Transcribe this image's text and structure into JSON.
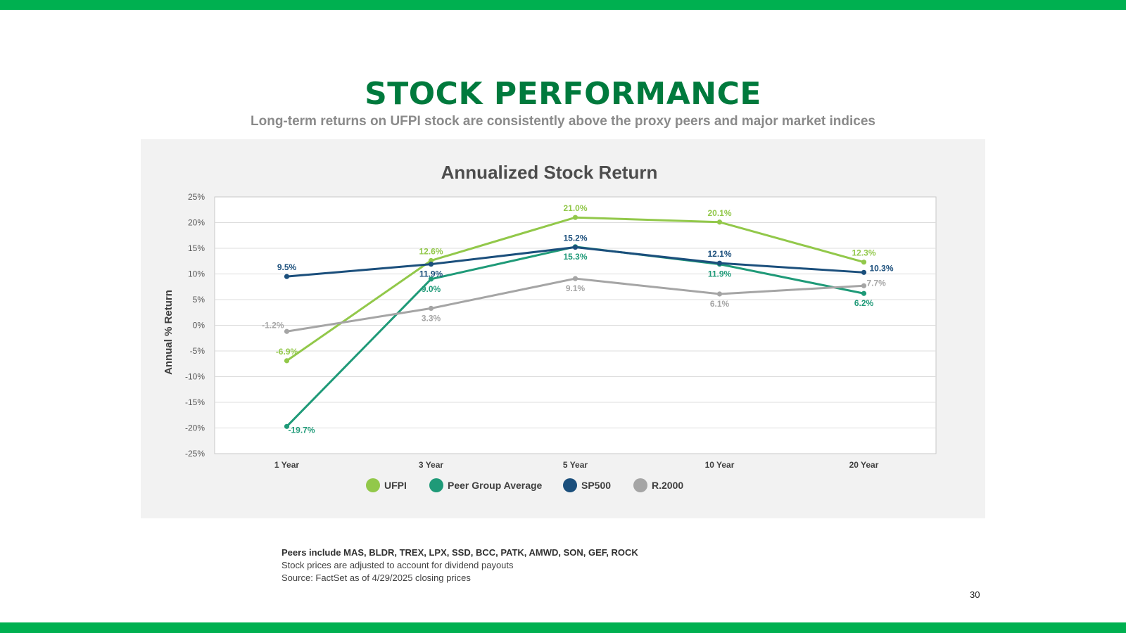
{
  "page": {
    "title": "STOCK PERFORMANCE",
    "subtitle": "Long-term returns on UFPI stock are consistently above the proxy peers and major market indices",
    "notes": [
      "Peers include MAS, BLDR, TREX, LPX, SSD, BCC, PATK, AMWD, SON, GEF, ROCK",
      "Stock prices are adjusted to account for dividend payouts",
      "Source: FactSet as of 4/29/2025 closing prices"
    ],
    "page_number": "30",
    "colors": {
      "top_bar": "#00b050",
      "title": "#007a3d",
      "panel": "#f2f2f2"
    }
  },
  "chart_data": {
    "type": "line",
    "title": "Annualized Stock Return",
    "ylabel": "Annual % Return",
    "xlabel": "",
    "categories": [
      "1 Year",
      "3 Year",
      "5 Year",
      "10 Year",
      "20 Year"
    ],
    "ylim": [
      -25,
      25
    ],
    "yticks": [
      25,
      20,
      15,
      10,
      5,
      0,
      -5,
      -10,
      -15,
      -20,
      -25
    ],
    "ytick_labels": [
      "25%",
      "20%",
      "15%",
      "10%",
      "5%",
      "0%",
      "-5%",
      "-10%",
      "-15%",
      "-20%",
      "-25%"
    ],
    "grid": true,
    "legend_position": "bottom",
    "series": [
      {
        "name": "UFPI",
        "color": "#92c84a",
        "values": [
          -6.9,
          12.6,
          21.0,
          20.1,
          12.3
        ],
        "labels": [
          "-6.9%",
          "12.6%",
          "21.0%",
          "20.1%",
          "12.3%"
        ],
        "label_pos": [
          "above",
          "above",
          "above",
          "above",
          "above"
        ]
      },
      {
        "name": "Peer Group Average",
        "color": "#1f9a78",
        "values": [
          -19.7,
          9.0,
          15.3,
          11.9,
          6.2
        ],
        "labels": [
          "-19.7%",
          "9.0%",
          "15.3%",
          "11.9%",
          "6.2%"
        ],
        "label_pos": [
          "right-below",
          "below",
          "below",
          "below",
          "below"
        ]
      },
      {
        "name": "SP500",
        "color": "#1b4f7c",
        "values": [
          9.5,
          11.9,
          15.2,
          12.1,
          10.3
        ],
        "labels": [
          "9.5%",
          "11.9%",
          "15.2%",
          "12.1%",
          "10.3%"
        ],
        "label_pos": [
          "above",
          "below",
          "above",
          "above",
          "right"
        ]
      },
      {
        "name": "R.2000",
        "color": "#a5a5a5",
        "values": [
          -1.2,
          3.3,
          9.1,
          6.1,
          7.7
        ],
        "labels": [
          "-1.2%",
          "3.3%",
          "9.1%",
          "6.1%",
          "7.7%"
        ],
        "label_pos": [
          "left",
          "below",
          "below",
          "below",
          "right-above"
        ]
      }
    ]
  }
}
